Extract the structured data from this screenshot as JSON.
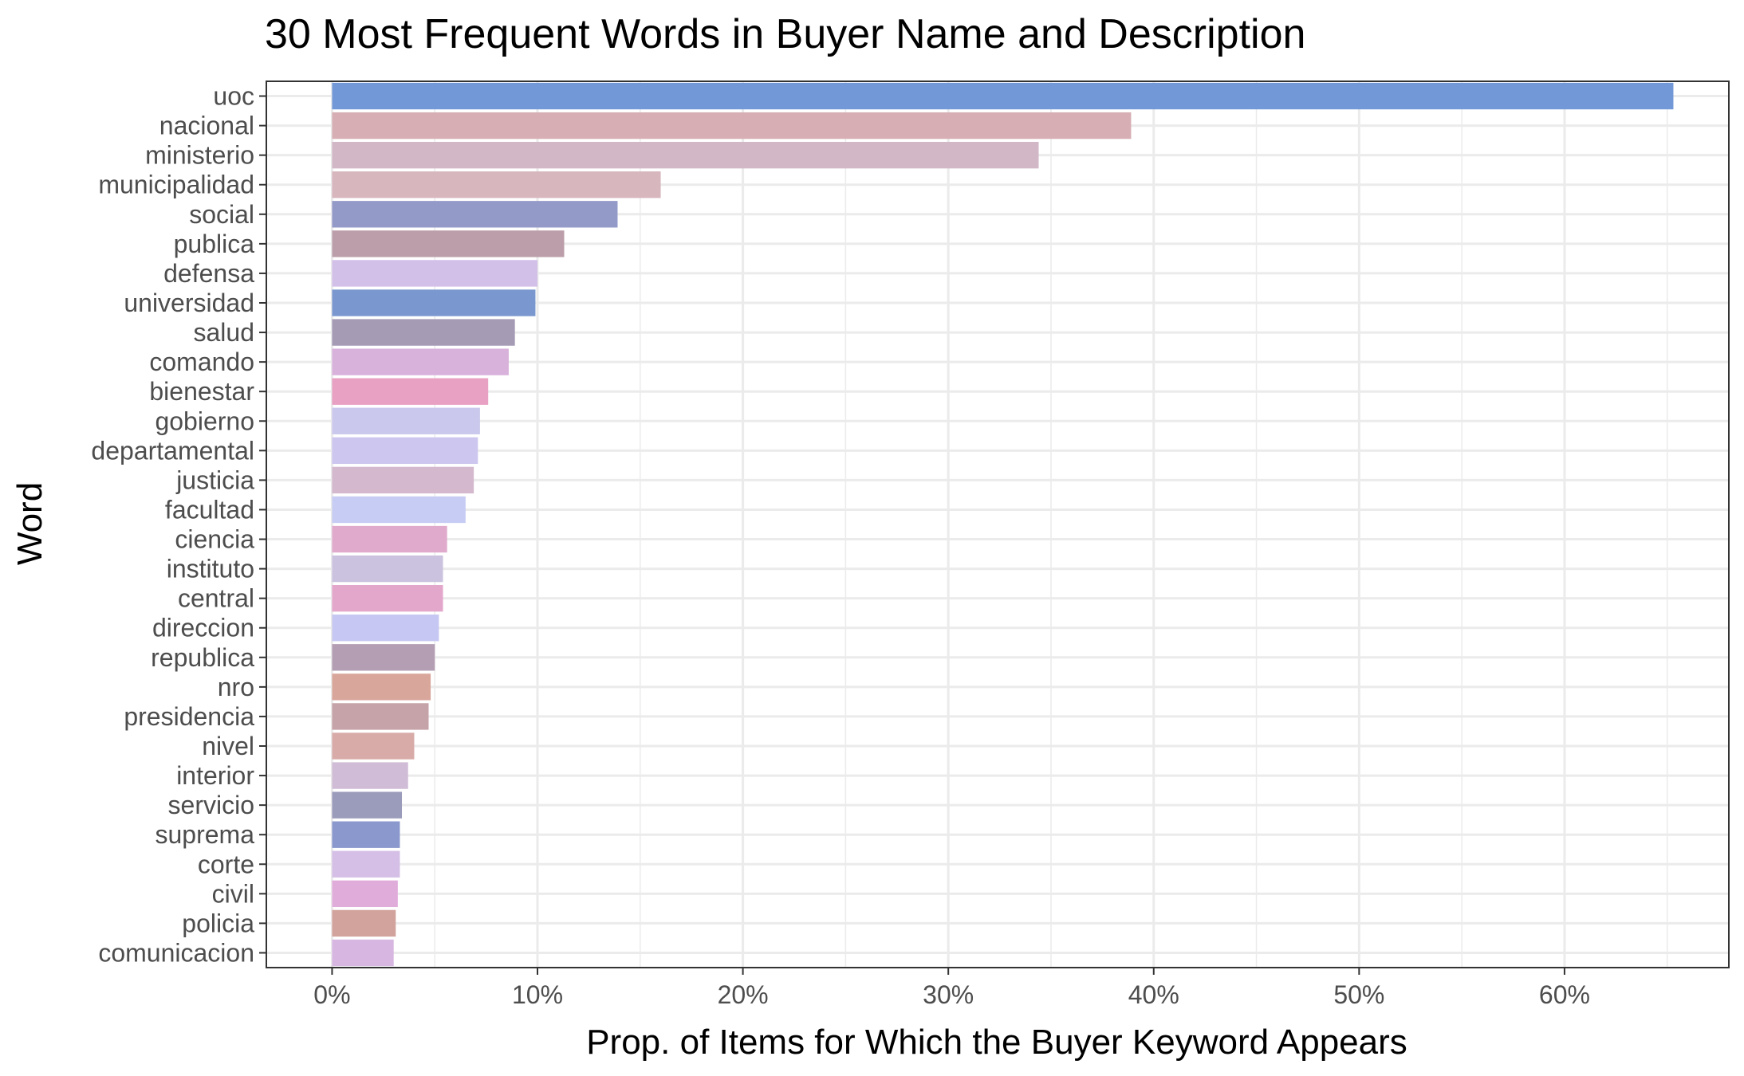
{
  "chart_data": {
    "type": "bar",
    "orientation": "horizontal",
    "title": "30 Most Frequent Words in Buyer Name and Description",
    "xlabel": "Prop. of Items for Which the Buyer Keyword Appears",
    "ylabel": "Word",
    "xlim": [
      -0.032,
      0.68
    ],
    "xticks": [
      0,
      0.1,
      0.2,
      0.3,
      0.4,
      0.5,
      0.6
    ],
    "xtick_labels": [
      "0%",
      "10%",
      "20%",
      "30%",
      "40%",
      "50%",
      "60%"
    ],
    "grid": true,
    "legend": "none",
    "categories": [
      "uoc",
      "nacional",
      "ministerio",
      "municipalidad",
      "social",
      "publica",
      "defensa",
      "universidad",
      "salud",
      "comando",
      "bienestar",
      "gobierno",
      "departamental",
      "justicia",
      "facultad",
      "ciencia",
      "instituto",
      "central",
      "direccion",
      "republica",
      "nro",
      "presidencia",
      "nivel",
      "interior",
      "servicio",
      "suprema",
      "corte",
      "civil",
      "policia",
      "comunicacion"
    ],
    "values": [
      0.653,
      0.389,
      0.344,
      0.16,
      0.139,
      0.113,
      0.1,
      0.099,
      0.089,
      0.086,
      0.076,
      0.072,
      0.071,
      0.069,
      0.065,
      0.056,
      0.054,
      0.054,
      0.052,
      0.05,
      0.048,
      0.047,
      0.04,
      0.037,
      0.034,
      0.033,
      0.033,
      0.032,
      0.031,
      0.03
    ],
    "colors": [
      "#7398d8",
      "#d6aeb3",
      "#d2b7c6",
      "#d7b6bd",
      "#939ac8",
      "#bb9ea9",
      "#d3c0e9",
      "#7a98cf",
      "#a59bb5",
      "#d9b2dc",
      "#e8a1c3",
      "#cac8ec",
      "#cdc6ef",
      "#d4b8cd",
      "#c6ccf3",
      "#e0aacd",
      "#cbc2df",
      "#e3a7cb",
      "#c6c7f2",
      "#b39eb3",
      "#d9a69c",
      "#c6a2a9",
      "#d8aba8",
      "#d0bcd6",
      "#9b9bbb",
      "#8a98cd",
      "#d5bfe6",
      "#e0addb",
      "#d2a29d",
      "#d8b6e2"
    ]
  }
}
